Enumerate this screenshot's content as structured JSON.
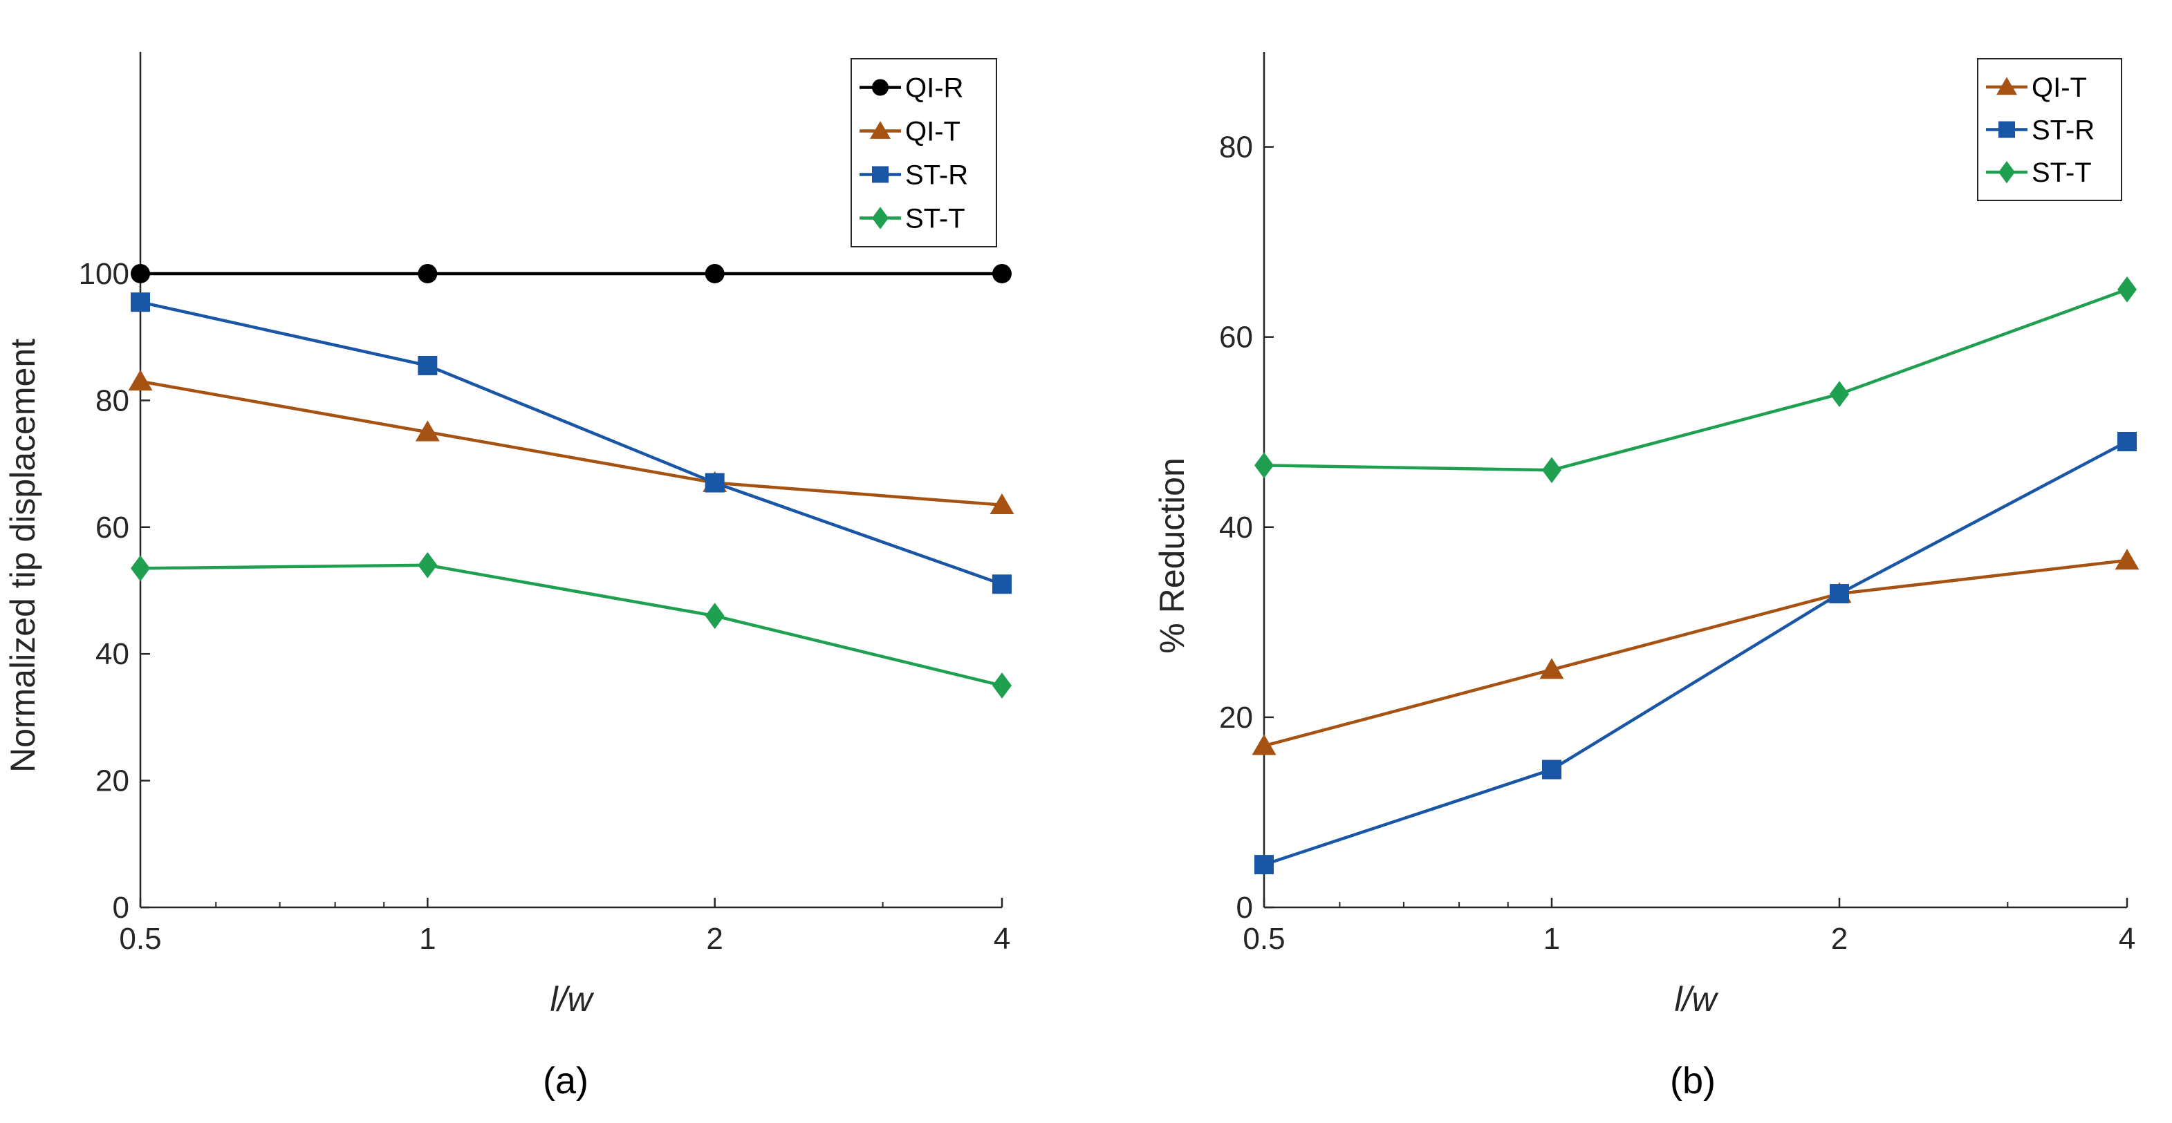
{
  "chart_data": [
    {
      "type": "line",
      "caption": "(a)",
      "xscale": "log",
      "x": [
        0.5,
        1,
        2,
        4
      ],
      "xticks": [
        "0.5",
        "1",
        "2",
        "4"
      ],
      "xlabel": "l/w",
      "ylabel": "Normalized tip displacement",
      "ylim": [
        0,
        135
      ],
      "yticks": [
        0,
        20,
        40,
        60,
        80,
        100
      ],
      "legend": "top-right",
      "series": [
        {
          "name": "QI-R",
          "color": "#000000",
          "marker": "circle",
          "values": [
            100,
            100,
            100,
            100
          ]
        },
        {
          "name": "QI-T",
          "color": "#A65212",
          "marker": "triangle",
          "values": [
            83,
            75,
            67,
            63.5
          ]
        },
        {
          "name": "ST-R",
          "color": "#1A56A6",
          "marker": "square",
          "values": [
            95.5,
            85.5,
            67,
            51
          ]
        },
        {
          "name": "ST-T",
          "color": "#1FA051",
          "marker": "diamond",
          "values": [
            53.5,
            54,
            46,
            35
          ]
        }
      ]
    },
    {
      "type": "line",
      "caption": "(b)",
      "xscale": "log",
      "x": [
        0.5,
        1,
        2,
        4
      ],
      "xticks": [
        "0.5",
        "1",
        "2",
        "4"
      ],
      "xlabel": "l/w",
      "ylabel": "% Reduction",
      "ylim": [
        0,
        90
      ],
      "yticks": [
        0,
        20,
        40,
        60,
        80
      ],
      "legend": "top-right",
      "series": [
        {
          "name": "QI-T",
          "color": "#A65212",
          "marker": "triangle",
          "values": [
            17,
            25,
            33,
            36.5
          ]
        },
        {
          "name": "ST-R",
          "color": "#1A56A6",
          "marker": "square",
          "values": [
            4.5,
            14.5,
            33,
            49
          ]
        },
        {
          "name": "ST-T",
          "color": "#1FA051",
          "marker": "diamond",
          "values": [
            46.5,
            46,
            54,
            65
          ]
        }
      ]
    }
  ]
}
